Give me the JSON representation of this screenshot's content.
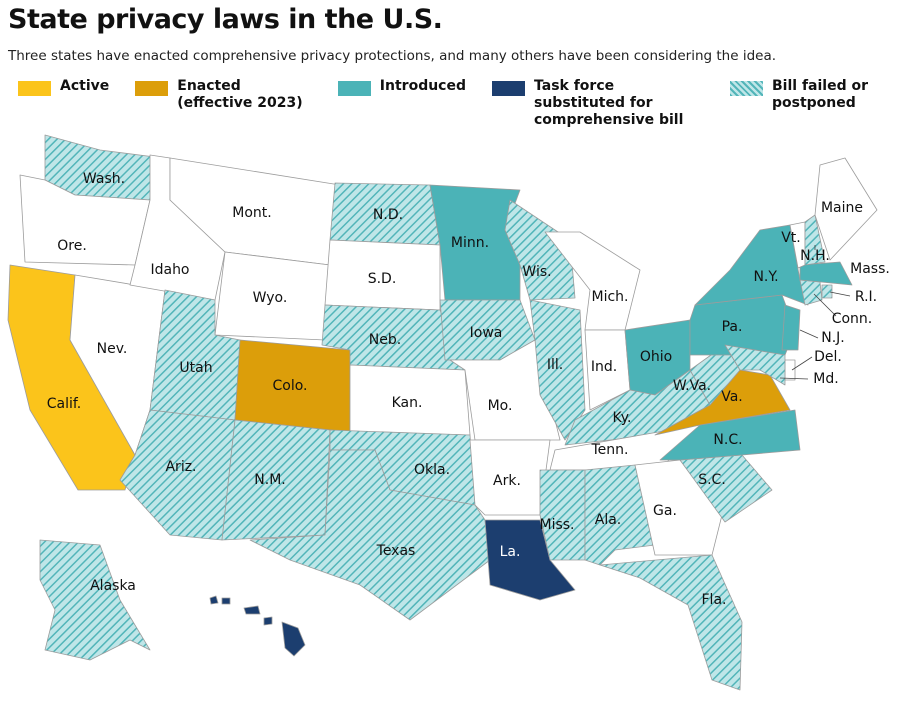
{
  "title": "State privacy laws in the U.S.",
  "subtitle": "Three states have enacted comprehensive privacy protections, and many others have been considering the idea.",
  "legend": [
    {
      "label": "Active",
      "color": "#fbc41b",
      "states": [
        "Calif."
      ]
    },
    {
      "label": "Enacted (effective 2023)",
      "color": "#dc9e0a",
      "states": [
        "Colo.",
        "Va."
      ]
    },
    {
      "label": "Introduced",
      "color": "#4bb3b7",
      "states": [
        "Minn.",
        "N.Y.",
        "Ohio",
        "Pa.",
        "N.J.",
        "N.C.",
        "Mass."
      ]
    },
    {
      "label": "Task force substituted for comprehensive bill",
      "color": "#1c3e6f",
      "states": [
        "La.",
        "Hawaii"
      ]
    },
    {
      "label": "Bill failed or postponed",
      "color": "#52b5b9",
      "pattern": "hatch",
      "states": [
        "Wash.",
        "N.D.",
        "Wis.",
        "Neb.",
        "Iowa",
        "Ill.",
        "Utah",
        "Ariz.",
        "N.M.",
        "Okla.",
        "Texas",
        "Miss.",
        "Ala.",
        "Fla.",
        "S.C.",
        "Ky.",
        "W.Va.",
        "Alaska",
        "Md.",
        "N.H.",
        "R.I.",
        "Conn."
      ]
    }
  ],
  "states": [
    "Wash.",
    "Ore.",
    "Calif.",
    "Nev.",
    "Idaho",
    "Mont.",
    "Wyo.",
    "Utah",
    "Colo.",
    "Ariz.",
    "N.M.",
    "N.D.",
    "S.D.",
    "Neb.",
    "Kan.",
    "Okla.",
    "Texas",
    "Minn.",
    "Iowa",
    "Mo.",
    "Ark.",
    "La.",
    "Wis.",
    "Ill.",
    "Mich.",
    "Ind.",
    "Ohio",
    "Ky.",
    "Tenn.",
    "Miss.",
    "Ala.",
    "Ga.",
    "Fla.",
    "S.C.",
    "N.C.",
    "Va.",
    "W.Va.",
    "Pa.",
    "N.Y.",
    "N.J.",
    "Del.",
    "Md.",
    "Conn.",
    "R.I.",
    "Mass.",
    "Vt.",
    "N.H.",
    "Maine",
    "Alaska",
    "Hawaii"
  ]
}
